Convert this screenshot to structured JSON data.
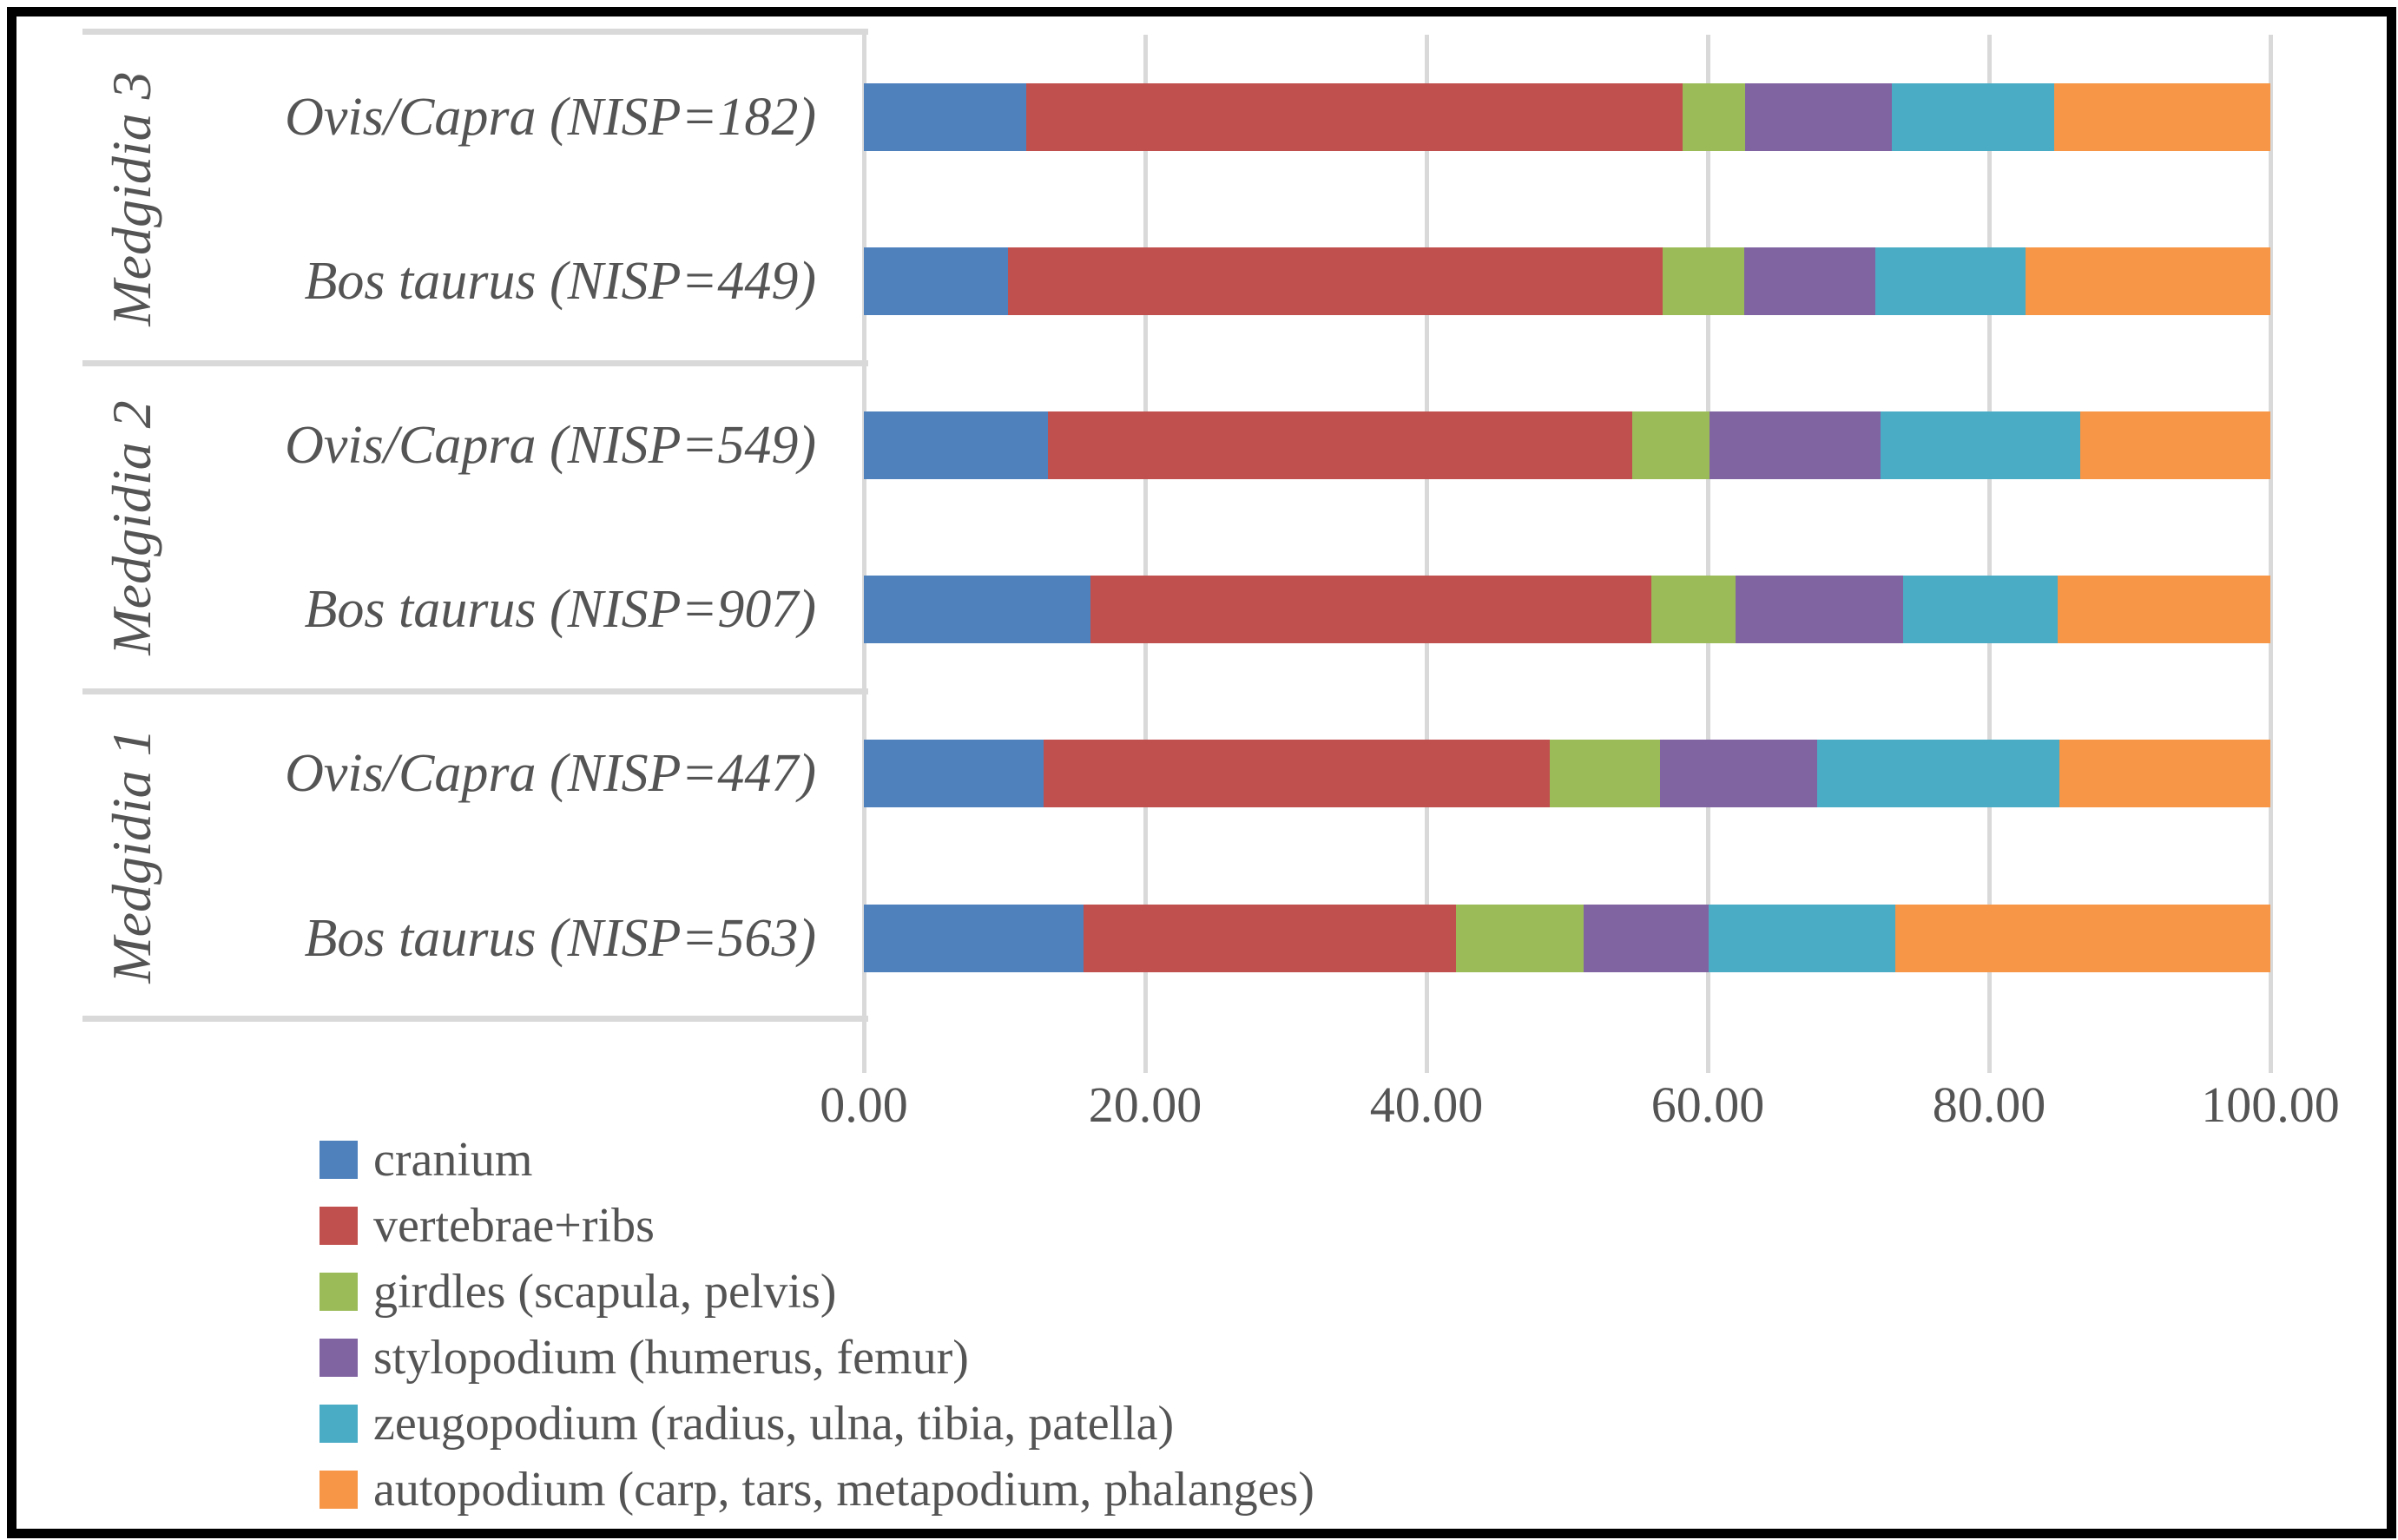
{
  "chart_data": {
    "type": "bar",
    "orientation": "horizontal",
    "stacked": true,
    "title": "",
    "xlabel": "",
    "ylabel": "",
    "x_axis": {
      "min": 0,
      "max": 100,
      "tick_step": 20,
      "ticks": [
        "0.00",
        "20.00",
        "40.00",
        "60.00",
        "80.00",
        "100.00"
      ],
      "grid": true
    },
    "series": [
      {
        "key": "cranium",
        "name": "cranium",
        "color": "#4F81BD"
      },
      {
        "key": "vertebrae-ribs",
        "name": "vertebrae+ribs",
        "color": "#C0504D"
      },
      {
        "key": "girdles",
        "name": "girdles (scapula, pelvis)",
        "color": "#9BBB59"
      },
      {
        "key": "stylopodium",
        "name": "stylopodium (humerus, femur)",
        "color": "#8064A2"
      },
      {
        "key": "zeugopodium",
        "name": "zeugopodium (radius, ulna, tibia, patella)",
        "color": "#4BACC6"
      },
      {
        "key": "autopodium",
        "name": "autopodium (carp, tars, metapodium, phalanges)",
        "color": "#F79646"
      }
    ],
    "groups": [
      "Medgidia 3",
      "Medgidia 2",
      "Medgidia 1"
    ],
    "rows": [
      {
        "group": "Medgidia 3",
        "label": "Ovis/Capra (NISP=182)",
        "nisp": 182,
        "values": [
          11.54,
          46.7,
          4.4,
          10.44,
          11.54,
          15.38
        ]
      },
      {
        "group": "Medgidia 3",
        "label": "Bos taurus (NISP=449)",
        "nisp": 449,
        "values": [
          10.24,
          46.55,
          5.79,
          9.35,
          10.69,
          17.37
        ]
      },
      {
        "group": "Medgidia 2",
        "label": "Ovis/Capra (NISP=549)",
        "nisp": 549,
        "values": [
          13.11,
          41.53,
          5.46,
          12.2,
          14.21,
          13.48
        ]
      },
      {
        "group": "Medgidia 2",
        "label": "Bos taurus (NISP=907)",
        "nisp": 907,
        "values": [
          16.1,
          39.91,
          5.95,
          11.91,
          11.03,
          15.1
        ]
      },
      {
        "group": "Medgidia 1",
        "label": "Ovis/Capra (NISP=447)",
        "nisp": 447,
        "values": [
          12.75,
          36.02,
          7.83,
          11.19,
          17.23,
          14.99
        ]
      },
      {
        "group": "Medgidia 1",
        "label": "Bos taurus (NISP=563)",
        "nisp": 563,
        "values": [
          15.63,
          26.47,
          9.06,
          8.88,
          13.32,
          26.64
        ]
      }
    ],
    "legend_position": "bottom-left"
  },
  "colors": {
    "grid": "#D9D9D9",
    "panel_border": "#D9D9D9",
    "text": "#545454",
    "frame": "#000000",
    "background": "#FFFFFF"
  }
}
